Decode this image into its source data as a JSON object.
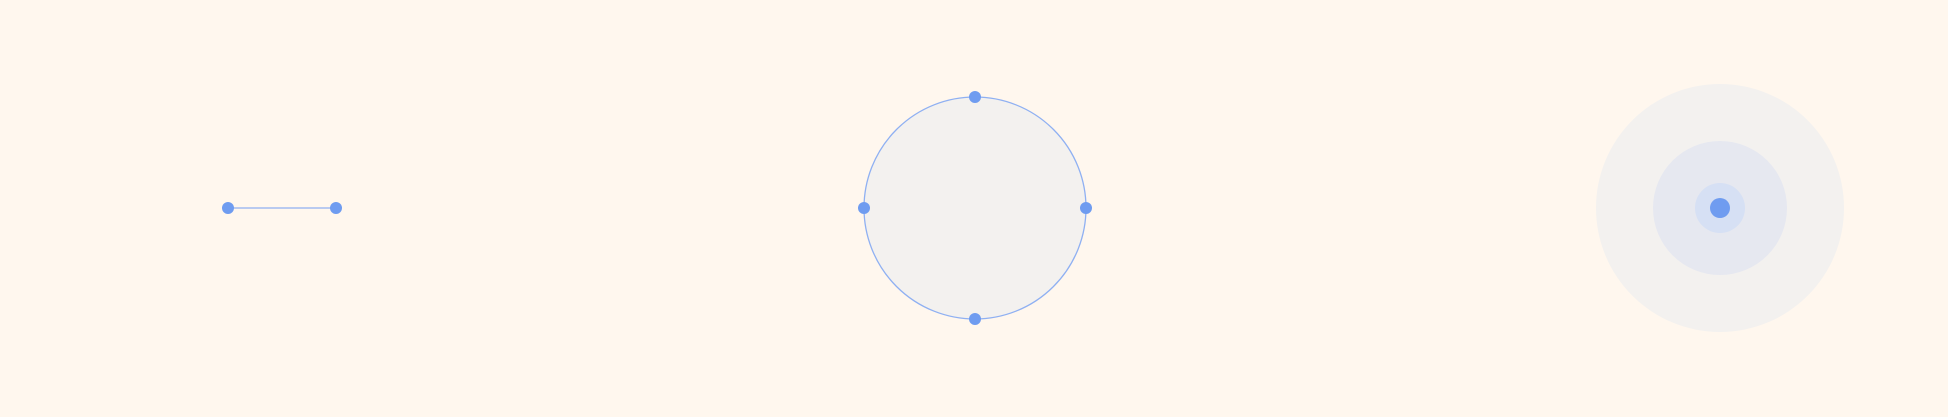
{
  "colors": {
    "background": "#fff7ee",
    "accent": "#6f9cf0",
    "accent_stroke": "#8fb0f2",
    "shape_fill": "#f3f1ef",
    "ring_mid_fill": "#e6e8f0",
    "ring_inner_fill": "#d6e0f4"
  },
  "widgets": [
    {
      "id": "line-segment",
      "kind": "line-with-two-handles",
      "handles": 2
    },
    {
      "id": "circle-with-handles",
      "kind": "circle-with-four-handles",
      "handles": 4
    },
    {
      "id": "concentric-point",
      "kind": "point-with-concentric-halos",
      "handles": 1
    }
  ]
}
